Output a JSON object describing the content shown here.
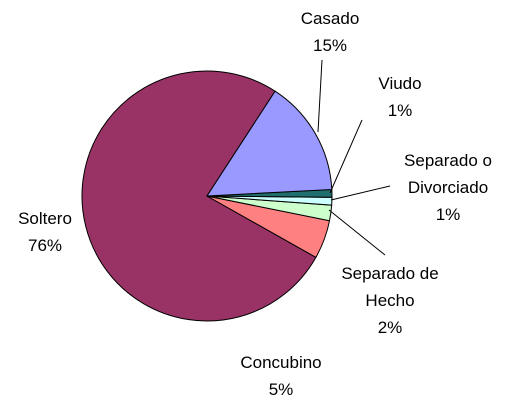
{
  "chart_data": {
    "type": "pie",
    "categories": [
      "Casado",
      "Viudo",
      "Separado o Divorciado",
      "Separado de Hecho",
      "Concubino",
      "Soltero"
    ],
    "values": [
      15,
      1,
      1,
      2,
      5,
      76
    ],
    "value_labels": [
      "15%",
      "1%",
      "1%",
      "2%",
      "5%",
      "76%"
    ],
    "colors": [
      "#9999ff",
      "#1f6f6f",
      "#ccffff",
      "#ccffcc",
      "#ff8080",
      "#993366"
    ]
  }
}
